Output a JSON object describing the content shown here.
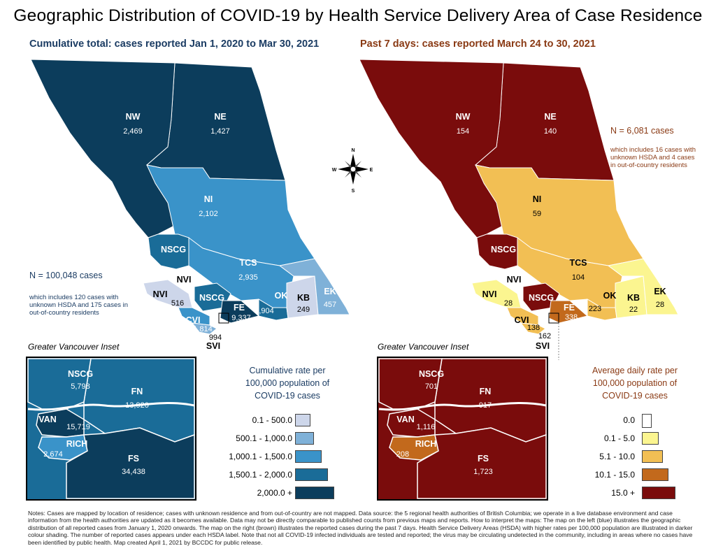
{
  "title": "Geographic Distribution of COVID-19 by Health Service Delivery Area of Case Residence",
  "left_subtitle": "Cumulative total: cases reported Jan 1, 2020 to Mar 30, 2021",
  "right_subtitle": "Past 7 days: cases reported March 24 to 30, 2021",
  "compass": {
    "n": "N",
    "s": "S",
    "e": "E",
    "w": "W"
  },
  "left": {
    "total": "N = 100,048 cases",
    "note": "which includes 120 cases with unknown HSDA and 175 cases in out-of-country residents",
    "regions": [
      {
        "code": "NW",
        "value": "2,469"
      },
      {
        "code": "NE",
        "value": "1,427"
      },
      {
        "code": "NI",
        "value": "2,102"
      },
      {
        "code": "NSCG",
        "value": ""
      },
      {
        "code": "TCS",
        "value": "2,935"
      },
      {
        "code": "NVI",
        "value": ""
      },
      {
        "code": "NVI",
        "value": "516"
      },
      {
        "code": "NSCG",
        "value": ""
      },
      {
        "code": "OK",
        "value": "4,904"
      },
      {
        "code": "KB",
        "value": "249"
      },
      {
        "code": "EK",
        "value": "457"
      },
      {
        "code": "FE",
        "value": "9,337"
      },
      {
        "code": "CVI",
        "value": "1,814"
      },
      {
        "code": "SVI",
        "value": "994"
      }
    ],
    "inset_title": "Greater Vancouver Inset",
    "inset": [
      {
        "code": "NSCG",
        "value": "5,798"
      },
      {
        "code": "FN",
        "value": "13,920"
      },
      {
        "code": "VAN",
        "value": "15,719"
      },
      {
        "code": "RICH",
        "value": "2,674"
      },
      {
        "code": "FS",
        "value": "34,438"
      }
    ],
    "legend_title": "Cumulative rate per 100,000 population of COVID-19 cases",
    "legend": [
      {
        "label": "0.1 - 500.0",
        "color": "#cdd6ea"
      },
      {
        "label": "500.1 - 1,000.0",
        "color": "#7fb1d8"
      },
      {
        "label": "1,000.1 - 1,500.0",
        "color": "#3a93c9"
      },
      {
        "label": "1,500.1 - 2,000.0",
        "color": "#1a6c98"
      },
      {
        "label": "2,000.0 +",
        "color": "#0c3d5c"
      }
    ]
  },
  "right": {
    "total": "N = 6,081 cases",
    "note": "which includes 16 cases with unknown HSDA and 4 cases in out-of-country residents",
    "regions": [
      {
        "code": "NW",
        "value": "154"
      },
      {
        "code": "NE",
        "value": "140"
      },
      {
        "code": "NI",
        "value": "59"
      },
      {
        "code": "NSCG",
        "value": ""
      },
      {
        "code": "TCS",
        "value": "104"
      },
      {
        "code": "NVI",
        "value": ""
      },
      {
        "code": "NVI",
        "value": "28"
      },
      {
        "code": "NSCG",
        "value": ""
      },
      {
        "code": "OK",
        "value": "223"
      },
      {
        "code": "KB",
        "value": "22"
      },
      {
        "code": "EK",
        "value": "28"
      },
      {
        "code": "FE",
        "value": "338"
      },
      {
        "code": "CVI",
        "value": "138"
      },
      {
        "code": "SVI",
        "value": "162"
      }
    ],
    "inset_title": "Greater Vancouver Inset",
    "inset": [
      {
        "code": "NSCG",
        "value": "701"
      },
      {
        "code": "FN",
        "value": "917"
      },
      {
        "code": "VAN",
        "value": "1,116"
      },
      {
        "code": "RICH",
        "value": "208"
      },
      {
        "code": "FS",
        "value": "1,723"
      }
    ],
    "legend_title": "Average daily rate per 100,000 population of COVID-19 cases",
    "legend": [
      {
        "label": "0.0",
        "color": "#ffffff"
      },
      {
        "label": "0.1 - 5.0",
        "color": "#fbf590"
      },
      {
        "label": "5.1 - 10.0",
        "color": "#f2bf54"
      },
      {
        "label": "10.1 - 15.0",
        "color": "#c2691c"
      },
      {
        "label": "15.0 +",
        "color": "#7a0c0c"
      }
    ]
  },
  "notes": "Notes: Cases are mapped by location of residence; cases with unknown residence and from out-of-country are not mapped. Data source: the 5 regional health authorities of British Columbia; we operate in a live database environment and case information from the health authorities are updated as it becomes available. Data may not be directly comparable to published counts from previous maps and reports. How to interpret the maps: The map on the left (blue) illustrates the geographic distribution of all reported cases from January 1, 2020 onwards. The map on the right (brown) illustrates the reported cases during the past 7 days. Health Service Delivery Areas (HSDA) with higher rates per 100,000 population are illustrated in darker colour shading. The number of reported cases appears under each HSDA label. Note that not all COVID-19 infected individuals are tested and reported; the virus may be circulating undetected in the community, including in areas where no cases have been identified by public health. Map created April 1, 2021 by BCCDC for public release."
}
